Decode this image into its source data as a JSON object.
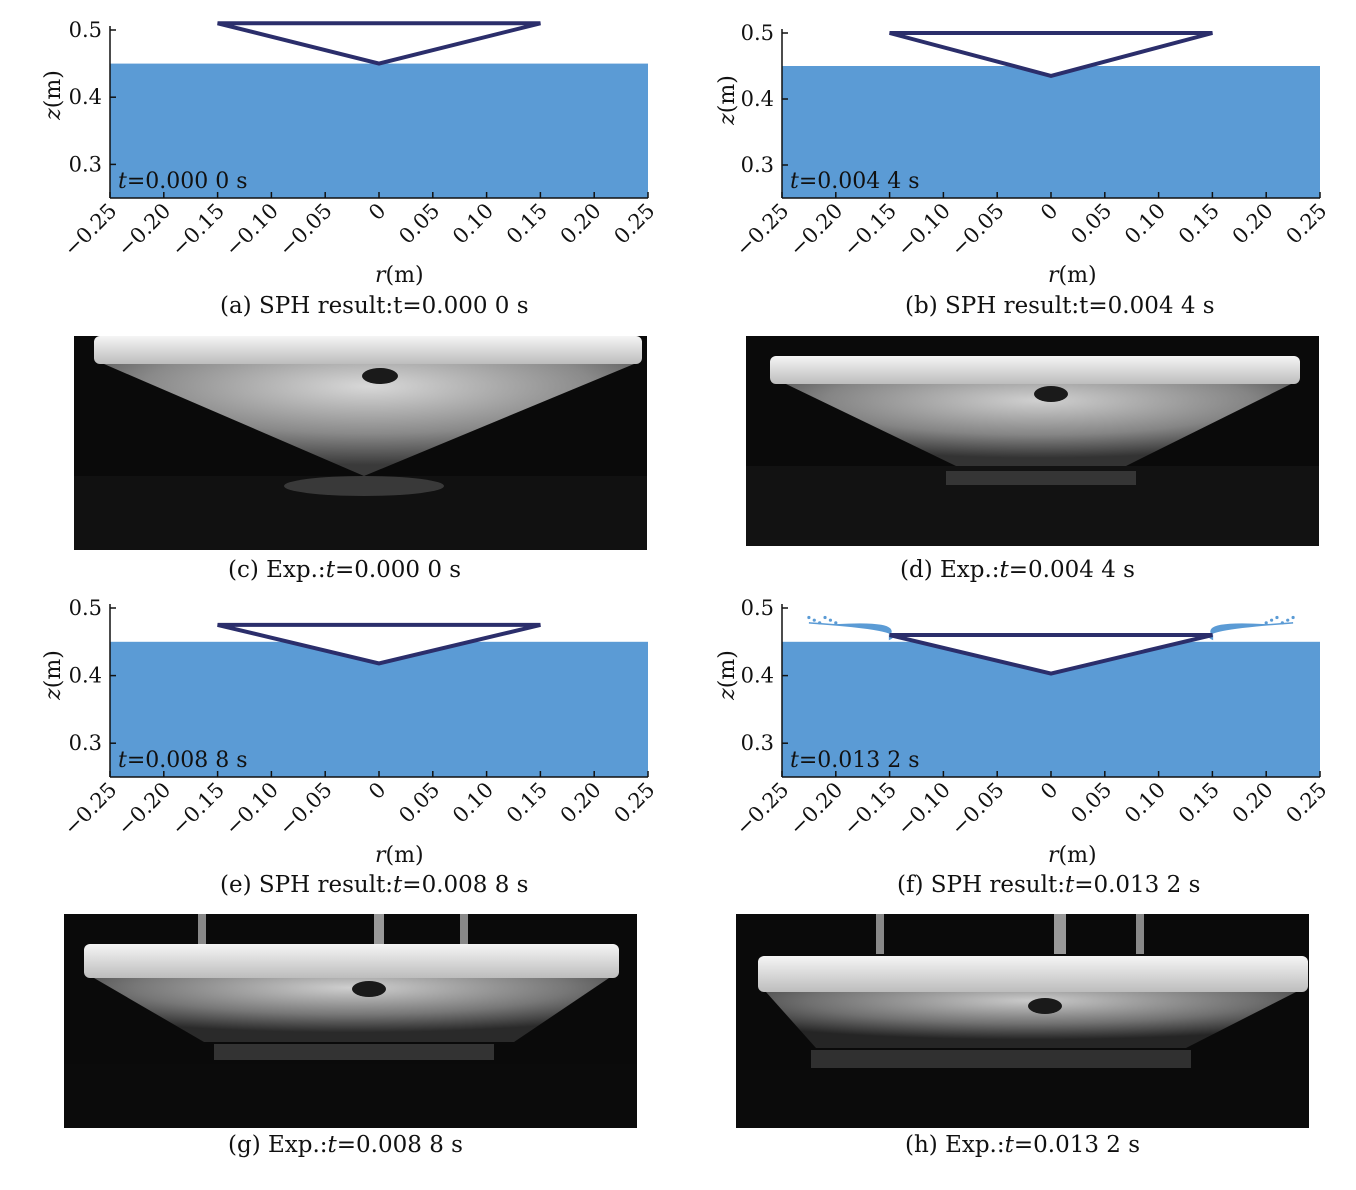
{
  "figure": {
    "axis_labels": {
      "x_var": "r",
      "x_unit": "(m)",
      "y_var": "z",
      "y_unit": "(m)"
    },
    "x_ticks": [
      "−0.25",
      "−0.20",
      "−0.15",
      "−0.10",
      "−0.05",
      "0",
      "0.05",
      "0.10",
      "0.15",
      "0.20",
      "0.25"
    ],
    "y_ticks": [
      "0.5",
      "0.4",
      "0.3"
    ],
    "colors": {
      "water": "#5b9bd5",
      "cone": "#2b2e6b",
      "background": "#ffffff"
    },
    "panels": [
      {
        "id": "a",
        "caption": "(a) SPH result:t=0.000 0 s",
        "time_var": "t",
        "time_value": "=0.000 0 s"
      },
      {
        "id": "b",
        "caption": "(b) SPH result:t=0.004 4 s",
        "time_var": "t",
        "time_value": "=0.004 4 s"
      },
      {
        "id": "c",
        "caption_prefix": "(c) Exp.:",
        "caption_var": "t",
        "caption_value": "=0.000 0 s"
      },
      {
        "id": "d",
        "caption_prefix": "(d) Exp.:",
        "caption_var": "t",
        "caption_value": "=0.004 4 s"
      },
      {
        "id": "e",
        "caption_prefix": "(e) SPH result:",
        "caption_var": "t",
        "caption_value": "=0.008 8 s",
        "time_var": "t",
        "time_value": "=0.008 8 s"
      },
      {
        "id": "f",
        "caption_prefix": "(f) SPH result:",
        "caption_var": "t",
        "caption_value": "=0.013 2 s",
        "time_var": "t",
        "time_value": "=0.013 2 s"
      },
      {
        "id": "g",
        "caption_prefix": "(g) Exp.:",
        "caption_var": "t",
        "caption_value": "=0.008 8 s"
      },
      {
        "id": "h",
        "caption_prefix": "(h) Exp.:",
        "caption_var": "t",
        "caption_value": "=0.013 2 s"
      }
    ]
  },
  "chart_data": [
    {
      "type": "area",
      "panel": "a",
      "xlabel": "r(m)",
      "ylabel": "z(m)",
      "xlim": [
        -0.25,
        0.25
      ],
      "ylim": [
        0.25,
        0.5
      ],
      "x_ticks": [
        -0.25,
        -0.2,
        -0.15,
        -0.1,
        -0.05,
        0,
        0.05,
        0.1,
        0.15,
        0.2,
        0.25
      ],
      "y_ticks": [
        0.3,
        0.4,
        0.5
      ],
      "water_level": 0.45,
      "cone": {
        "top_z": 0.51,
        "apex_z": 0.45,
        "half_width": 0.15
      },
      "annotation": "t=0.000 0 s"
    },
    {
      "type": "area",
      "panel": "b",
      "xlabel": "r(m)",
      "ylabel": "z(m)",
      "xlim": [
        -0.25,
        0.25
      ],
      "ylim": [
        0.25,
        0.5
      ],
      "x_ticks": [
        -0.25,
        -0.2,
        -0.15,
        -0.1,
        -0.05,
        0,
        0.05,
        0.1,
        0.15,
        0.2,
        0.25
      ],
      "y_ticks": [
        0.3,
        0.4,
        0.5
      ],
      "water_level": 0.45,
      "cone": {
        "top_z": 0.5,
        "apex_z": 0.435,
        "half_width": 0.15
      },
      "annotation": "t=0.004 4 s"
    },
    {
      "type": "area",
      "panel": "e",
      "xlabel": "r(m)",
      "ylabel": "z(m)",
      "xlim": [
        -0.25,
        0.25
      ],
      "ylim": [
        0.25,
        0.5
      ],
      "x_ticks": [
        -0.25,
        -0.2,
        -0.15,
        -0.1,
        -0.05,
        0,
        0.05,
        0.1,
        0.15,
        0.2,
        0.25
      ],
      "y_ticks": [
        0.3,
        0.4,
        0.5
      ],
      "water_level": 0.45,
      "cone": {
        "top_z": 0.475,
        "apex_z": 0.418,
        "half_width": 0.15
      },
      "annotation": "t=0.008 8 s"
    },
    {
      "type": "area",
      "panel": "f",
      "xlabel": "r(m)",
      "ylabel": "z(m)",
      "xlim": [
        -0.25,
        0.25
      ],
      "ylim": [
        0.25,
        0.5
      ],
      "x_ticks": [
        -0.25,
        -0.2,
        -0.15,
        -0.1,
        -0.05,
        0,
        0.05,
        0.1,
        0.15,
        0.2,
        0.25
      ],
      "y_ticks": [
        0.3,
        0.4,
        0.5
      ],
      "water_level": 0.45,
      "cone": {
        "top_z": 0.46,
        "apex_z": 0.403,
        "half_width": 0.15
      },
      "splash": true,
      "annotation": "t=0.013 2 s"
    }
  ]
}
